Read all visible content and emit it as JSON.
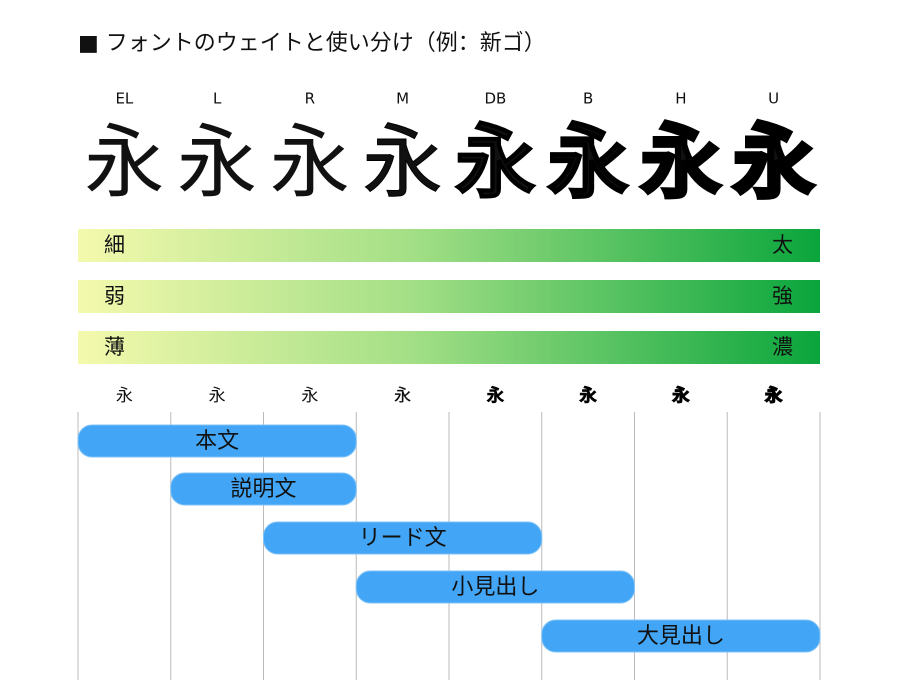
{
  "header": {
    "title": "■ フォントのウェイトと使い分け（例：新ゴ）"
  },
  "weights": [
    {
      "code": "EL",
      "glyph": "永"
    },
    {
      "code": "L",
      "glyph": "永"
    },
    {
      "code": "R",
      "glyph": "永"
    },
    {
      "code": "M",
      "glyph": "永"
    },
    {
      "code": "DB",
      "glyph": "永"
    },
    {
      "code": "B",
      "glyph": "永"
    },
    {
      "code": "H",
      "glyph": "永"
    },
    {
      "code": "U",
      "glyph": "永"
    }
  ],
  "scales": [
    {
      "left": "細",
      "right": "太"
    },
    {
      "left": "弱",
      "right": "強"
    },
    {
      "left": "薄",
      "right": "濃"
    }
  ],
  "usages": [
    "本文",
    "説明文",
    "リード文",
    "小見出し",
    "大見出し"
  ]
}
